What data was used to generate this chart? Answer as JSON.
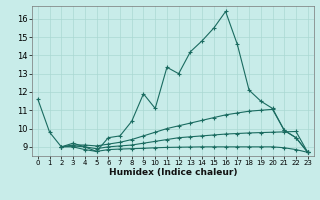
{
  "title": "",
  "xlabel": "Humidex (Indice chaleur)",
  "xlim": [
    -0.5,
    23.5
  ],
  "ylim": [
    8.5,
    16.7
  ],
  "yticks": [
    9,
    10,
    11,
    12,
    13,
    14,
    15,
    16
  ],
  "xticks": [
    0,
    1,
    2,
    3,
    4,
    5,
    6,
    7,
    8,
    9,
    10,
    11,
    12,
    13,
    14,
    15,
    16,
    17,
    18,
    19,
    20,
    21,
    22,
    23
  ],
  "bg_color": "#c8ece9",
  "line_color": "#1a6b60",
  "grid_color": "#aad8d3",
  "lines": [
    {
      "x": [
        0,
        1,
        2,
        3,
        4,
        5,
        6,
        7,
        8,
        9,
        10,
        11,
        12,
        13,
        14,
        15,
        16,
        17,
        18,
        19,
        20,
        21,
        22,
        23
      ],
      "y": [
        11.6,
        9.8,
        9.0,
        9.2,
        9.0,
        8.75,
        9.5,
        9.6,
        10.4,
        11.9,
        11.1,
        13.35,
        13.0,
        14.2,
        14.8,
        15.5,
        16.4,
        14.6,
        12.1,
        11.5,
        11.1,
        9.9,
        9.5,
        8.7
      ]
    },
    {
      "x": [
        2,
        3,
        4,
        5,
        6,
        7,
        8,
        9,
        10,
        11,
        12,
        13,
        14,
        15,
        16,
        17,
        18,
        19,
        20,
        21,
        22,
        23
      ],
      "y": [
        9.0,
        9.1,
        9.1,
        9.05,
        9.15,
        9.25,
        9.4,
        9.6,
        9.8,
        10.0,
        10.15,
        10.3,
        10.45,
        10.6,
        10.75,
        10.85,
        10.95,
        11.0,
        11.05,
        9.9,
        9.5,
        8.7
      ]
    },
    {
      "x": [
        2,
        3,
        4,
        5,
        6,
        7,
        8,
        9,
        10,
        11,
        12,
        13,
        14,
        15,
        16,
        17,
        18,
        19,
        20,
        21,
        22,
        23
      ],
      "y": [
        9.0,
        9.05,
        9.0,
        8.9,
        9.0,
        9.05,
        9.1,
        9.2,
        9.3,
        9.4,
        9.5,
        9.55,
        9.6,
        9.65,
        9.7,
        9.73,
        9.76,
        9.78,
        9.8,
        9.82,
        9.84,
        8.7
      ]
    },
    {
      "x": [
        2,
        3,
        4,
        5,
        6,
        7,
        8,
        9,
        10,
        11,
        12,
        13,
        14,
        15,
        16,
        17,
        18,
        19,
        20,
        21,
        22,
        23
      ],
      "y": [
        9.0,
        9.0,
        8.85,
        8.75,
        8.85,
        8.88,
        8.9,
        8.92,
        8.95,
        8.97,
        8.98,
        8.99,
        9.0,
        9.0,
        9.0,
        9.0,
        9.0,
        9.0,
        9.0,
        8.95,
        8.85,
        8.7
      ]
    }
  ]
}
